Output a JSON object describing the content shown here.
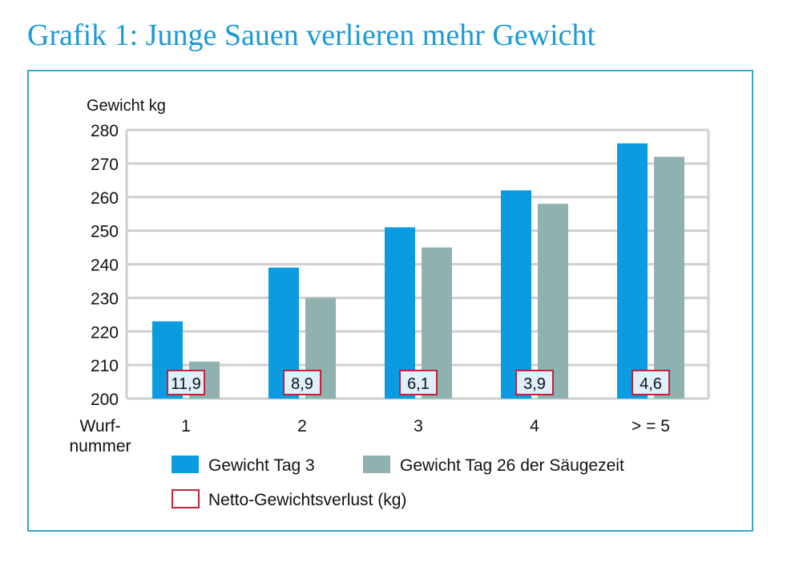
{
  "title": "Grafik 1: Junge Sauen verlieren mehr Gewicht",
  "chart_data": {
    "type": "bar",
    "ylabel": "Gewicht kg",
    "xlabel": "Wurf-\nnummer",
    "ylim": [
      200,
      280
    ],
    "yticks": [
      200,
      210,
      220,
      230,
      240,
      250,
      260,
      270,
      280
    ],
    "grid": true,
    "categories": [
      "1",
      "2",
      "3",
      "4",
      "> = 5"
    ],
    "series": [
      {
        "name": "Gewicht Tag 3",
        "color": "#0a9be0",
        "values": [
          223,
          239,
          251,
          262,
          276
        ]
      },
      {
        "name": "Gewicht Tag 26 der Säugezeit",
        "color": "#8fb1b0",
        "values": [
          211,
          230,
          245,
          258,
          272
        ]
      }
    ],
    "net_loss": {
      "name": "Netto-Gewichtsverlust (kg)",
      "color": "#c0233a",
      "values": [
        "11,9",
        "8,9",
        "6,1",
        "3,9",
        "4,6"
      ]
    },
    "legend_position": "bottom"
  }
}
